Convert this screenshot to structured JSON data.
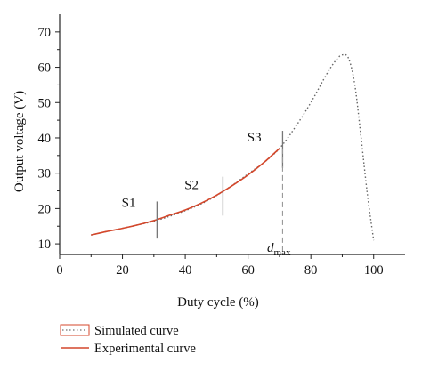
{
  "chart_data": {
    "type": "line",
    "title": "",
    "xlabel": "Duty cycle (%)",
    "ylabel": "Output voltage (V)",
    "xlim": [
      0,
      110
    ],
    "ylim": [
      7,
      75
    ],
    "x_ticks": [
      0,
      20,
      40,
      60,
      80,
      100
    ],
    "y_ticks": [
      10,
      20,
      30,
      40,
      50,
      60,
      70
    ],
    "grid": false,
    "legend_position": "bottom-left, below plot",
    "series": [
      {
        "name": "Simulated curve",
        "style": "dotted",
        "color": "#666666",
        "x": [
          10,
          15,
          20,
          25,
          30,
          35,
          40,
          45,
          50,
          55,
          60,
          65,
          70,
          75,
          80,
          85,
          88,
          90,
          92,
          94,
          96,
          98,
          100
        ],
        "y": [
          12.5,
          13.5,
          14.4,
          15.4,
          16.4,
          17.8,
          19.4,
          21.3,
          23.7,
          26.6,
          29.8,
          33.0,
          37.0,
          43.0,
          50.0,
          58.0,
          62.0,
          63.5,
          62.5,
          55.0,
          40.0,
          24.0,
          11.0
        ]
      },
      {
        "name": "Experimental curve",
        "style": "solid",
        "color": "#d4472b",
        "x": [
          10,
          15,
          20,
          25,
          30,
          35,
          40,
          45,
          50,
          55,
          60,
          65,
          70
        ],
        "y": [
          12.5,
          13.5,
          14.4,
          15.4,
          16.6,
          18.1,
          19.6,
          21.5,
          23.8,
          26.5,
          29.5,
          33.0,
          37.0
        ]
      }
    ],
    "markers": [
      {
        "label": "S1",
        "x": 31,
        "y_range": [
          11.5,
          22
        ],
        "label_x": 22,
        "label_y": 20.5
      },
      {
        "label": "S2",
        "x": 52,
        "y_range": [
          18,
          29
        ],
        "label_x": 42,
        "label_y": 25.5
      },
      {
        "label": "S3",
        "x": 71,
        "y_range": [
          31.5,
          42
        ],
        "label_x": 62,
        "label_y": 39
      }
    ],
    "dmax": {
      "label": "d",
      "subscript": "max",
      "x": 71
    }
  },
  "legend": {
    "simulated_label": "Simulated curve",
    "experimental_label": "Experimental curve",
    "experimental_color": "#d4472b"
  }
}
